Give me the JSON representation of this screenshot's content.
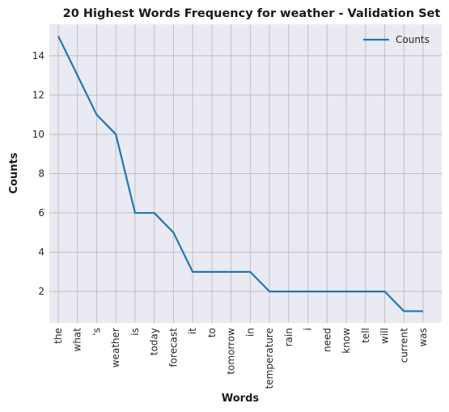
{
  "chart_data": {
    "type": "line",
    "title": "20 Highest Words Frequency for weather - Validation Set",
    "xlabel": "Words",
    "ylabel": "Counts",
    "categories": [
      "the",
      "what",
      "'s",
      "weather",
      "is",
      "today",
      "forecast",
      "it",
      "to",
      "tomorrow",
      "in",
      "temperature",
      "rain",
      "i",
      "need",
      "know",
      "tell",
      "will",
      "current",
      "was"
    ],
    "series": [
      {
        "name": "Counts",
        "values": [
          15,
          13,
          11,
          10,
          6,
          6,
          5,
          3,
          3,
          3,
          3,
          2,
          2,
          2,
          2,
          2,
          2,
          2,
          1,
          1
        ],
        "color": "#1f77b4"
      }
    ],
    "ylim": [
      0.4,
      15.6
    ],
    "yticks": [
      2,
      4,
      6,
      8,
      10,
      12,
      14
    ],
    "grid": true,
    "legend": "top-right",
    "background": "#eaeaf2",
    "grid_color": "#c0c0c0"
  }
}
